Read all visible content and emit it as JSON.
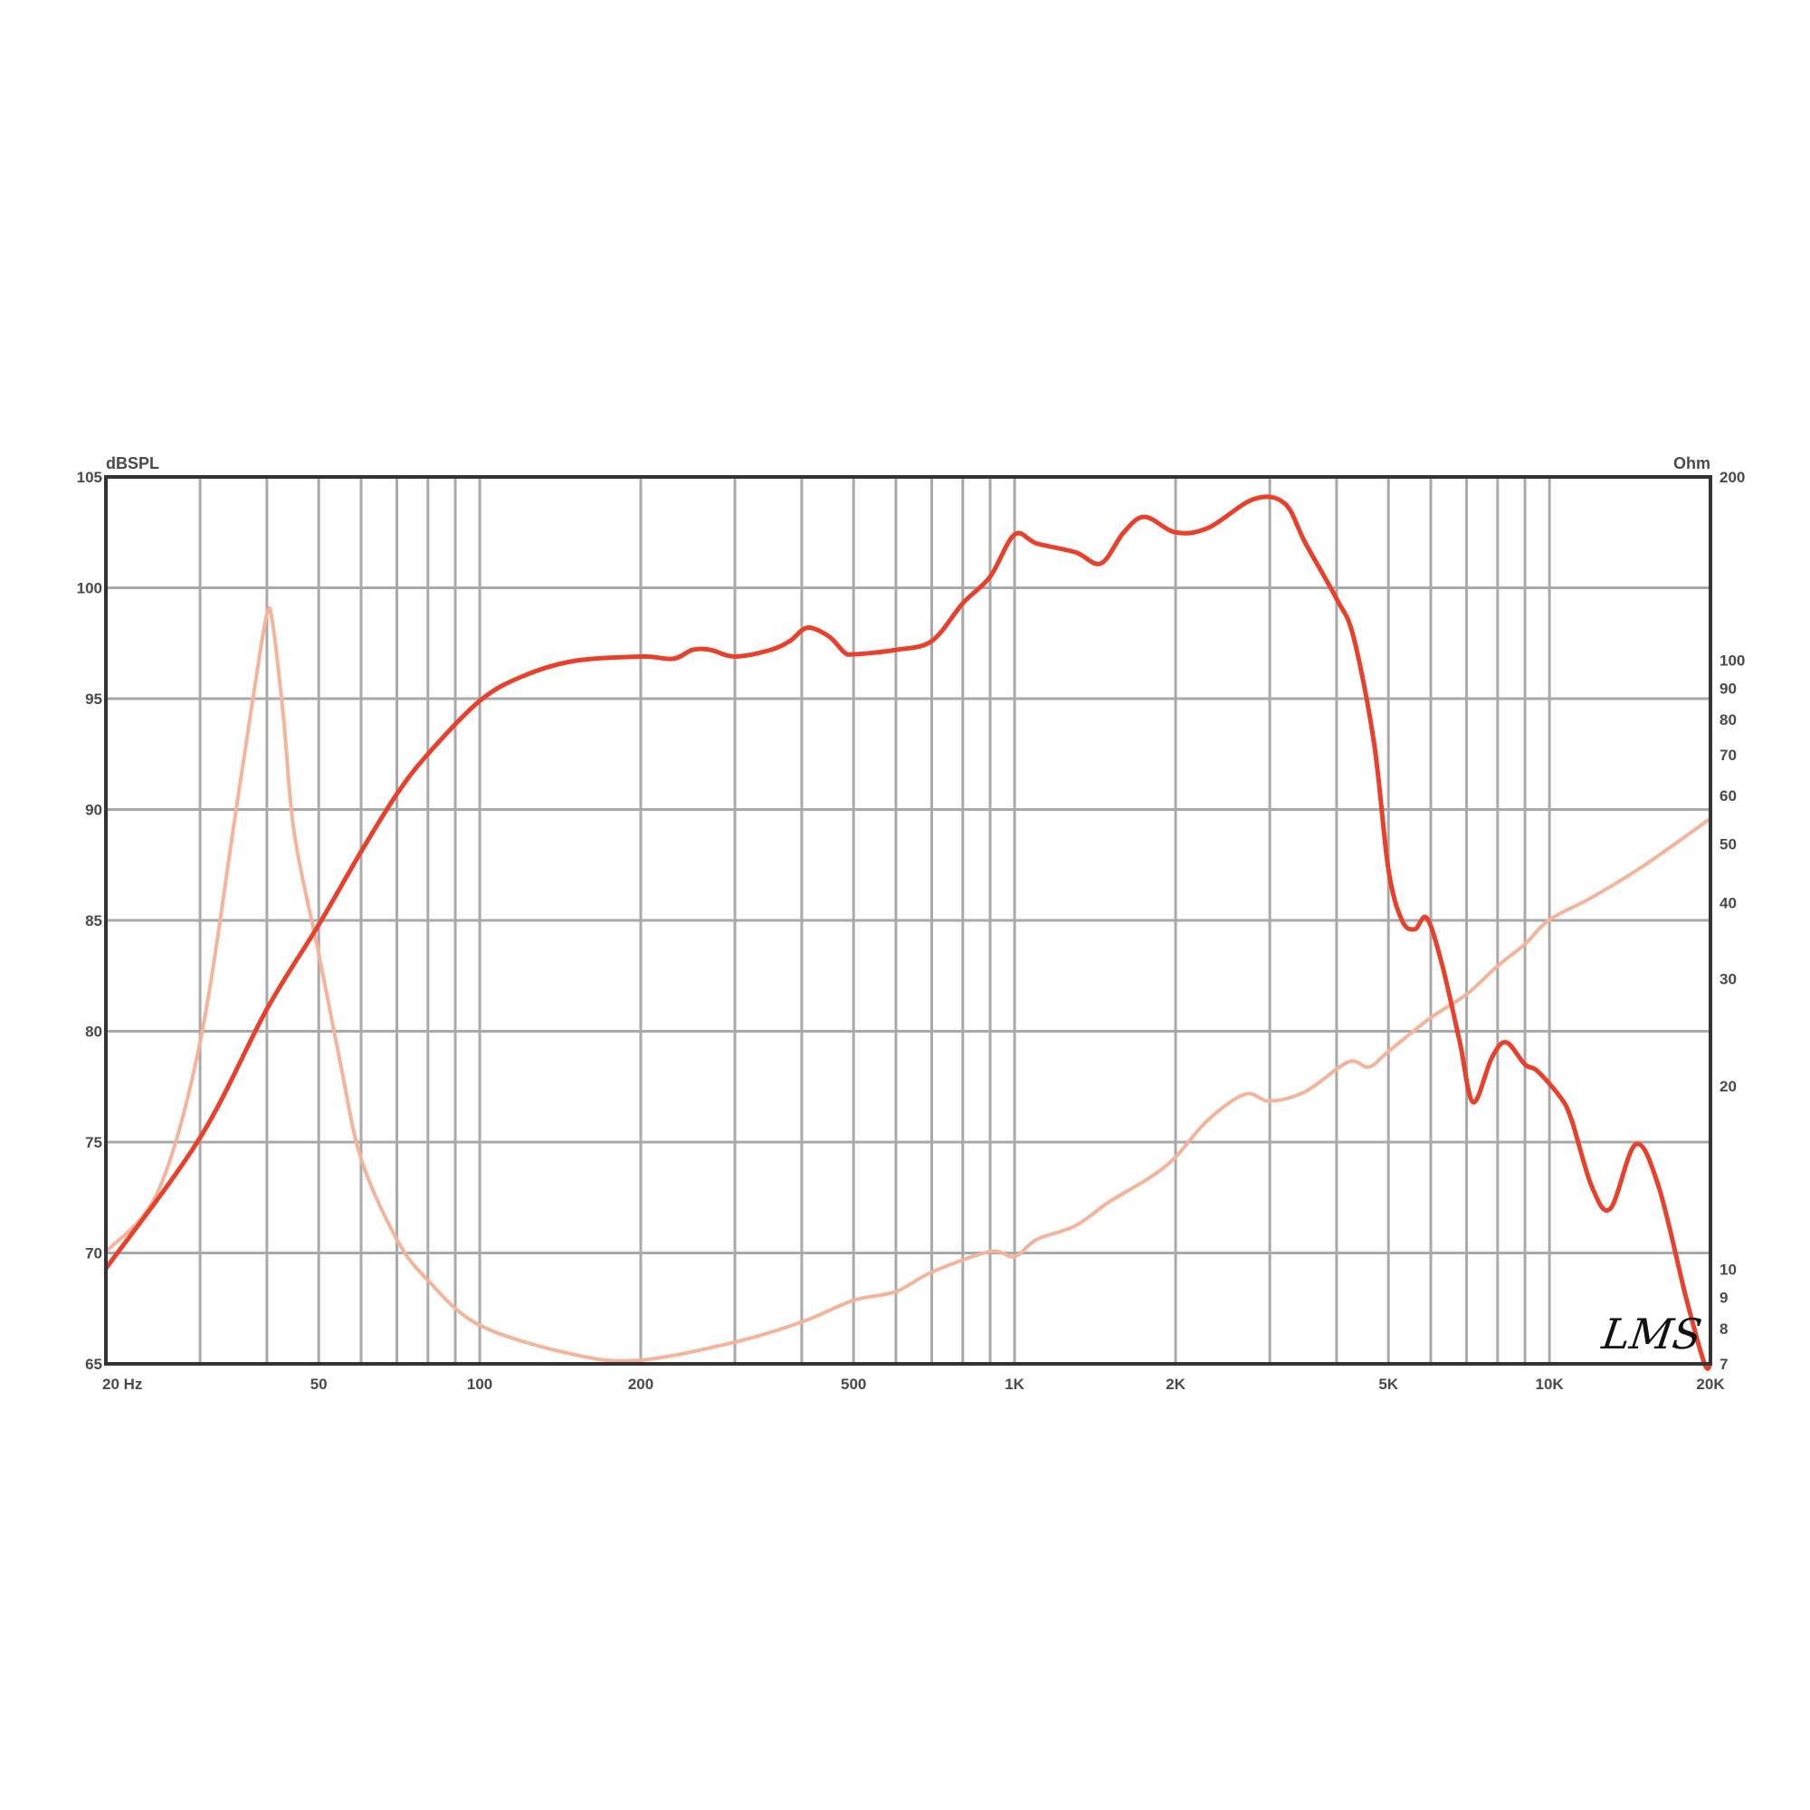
{
  "chart_data": {
    "type": "line",
    "title": "",
    "xlabel": "Hz",
    "ylabel_left": "dBSPL",
    "ylabel_right": "Ohm",
    "x_scale": "log",
    "xlim": [
      20,
      20000
    ],
    "ylim_left": [
      65,
      105
    ],
    "ylim_right": [
      7,
      200
    ],
    "y_right_scale": "log",
    "grid": true,
    "x_tick_labels": [
      {
        "value": 20,
        "label": "20  Hz"
      },
      {
        "value": 50,
        "label": "50"
      },
      {
        "value": 100,
        "label": "100"
      },
      {
        "value": 200,
        "label": "200"
      },
      {
        "value": 500,
        "label": "500"
      },
      {
        "value": 1000,
        "label": "1K"
      },
      {
        "value": 2000,
        "label": "2K"
      },
      {
        "value": 5000,
        "label": "5K"
      },
      {
        "value": 10000,
        "label": "10K"
      },
      {
        "value": 20000,
        "label": "20K"
      }
    ],
    "y_left_ticks": [
      65,
      70,
      75,
      80,
      85,
      90,
      95,
      100,
      105
    ],
    "y_right_ticks": [
      7,
      8,
      9,
      10,
      20,
      30,
      40,
      50,
      60,
      70,
      80,
      90,
      100,
      200
    ],
    "series": [
      {
        "axis": "left",
        "color": "#e8402a",
        "points": [
          [
            20,
            69.3
          ],
          [
            30,
            75.2
          ],
          [
            40,
            81
          ],
          [
            50,
            84.8
          ],
          [
            60,
            88.1
          ],
          [
            70,
            90.7
          ],
          [
            80,
            92.5
          ],
          [
            100,
            94.9
          ],
          [
            120,
            96
          ],
          [
            150,
            96.7
          ],
          [
            200,
            96.9
          ],
          [
            230,
            96.8
          ],
          [
            250,
            97.2
          ],
          [
            270,
            97.2
          ],
          [
            300,
            96.9
          ],
          [
            350,
            97.2
          ],
          [
            380,
            97.6
          ],
          [
            410,
            98.2
          ],
          [
            450,
            97.8
          ],
          [
            480,
            97.1
          ],
          [
            500,
            97.0
          ],
          [
            600,
            97.2
          ],
          [
            700,
            97.6
          ],
          [
            800,
            99.3
          ],
          [
            900,
            100.5
          ],
          [
            1000,
            102.4
          ],
          [
            1100,
            102.0
          ],
          [
            1300,
            101.6
          ],
          [
            1450,
            101.1
          ],
          [
            1600,
            102.5
          ],
          [
            1750,
            103.2
          ],
          [
            2000,
            102.5
          ],
          [
            2300,
            102.7
          ],
          [
            2800,
            104.0
          ],
          [
            3200,
            103.8
          ],
          [
            3500,
            102
          ],
          [
            4000,
            99.5
          ],
          [
            4300,
            97.8
          ],
          [
            4700,
            93
          ],
          [
            5000,
            87.3
          ],
          [
            5300,
            85
          ],
          [
            5600,
            84.6
          ],
          [
            5900,
            85.1
          ],
          [
            6300,
            83
          ],
          [
            6800,
            79.5
          ],
          [
            7200,
            76.8
          ],
          [
            7800,
            78.8
          ],
          [
            8300,
            79.5
          ],
          [
            9000,
            78.5
          ],
          [
            9500,
            78.2
          ],
          [
            10500,
            77
          ],
          [
            11000,
            76
          ],
          [
            12000,
            73
          ],
          [
            13000,
            72
          ],
          [
            14500,
            74.9
          ],
          [
            16000,
            73
          ],
          [
            18000,
            68
          ],
          [
            19500,
            65
          ],
          [
            20000,
            65
          ]
        ]
      },
      {
        "axis": "right",
        "color": "#f5b49a",
        "points": [
          [
            20,
            10.7
          ],
          [
            25,
            13.4
          ],
          [
            30,
            23.6
          ],
          [
            35,
            56.5
          ],
          [
            38,
            91
          ],
          [
            40,
            119
          ],
          [
            41,
            115
          ],
          [
            43,
            80
          ],
          [
            45,
            52
          ],
          [
            50,
            33
          ],
          [
            55,
            21.6
          ],
          [
            60,
            15.2
          ],
          [
            70,
            11.2
          ],
          [
            80,
            9.6
          ],
          [
            100,
            8.1
          ],
          [
            150,
            7.25
          ],
          [
            200,
            7.1
          ],
          [
            300,
            7.6
          ],
          [
            400,
            8.2
          ],
          [
            500,
            8.9
          ],
          [
            600,
            9.2
          ],
          [
            700,
            9.9
          ],
          [
            900,
            10.7
          ],
          [
            1000,
            10.5
          ],
          [
            1100,
            11.2
          ],
          [
            1300,
            11.8
          ],
          [
            1500,
            12.9
          ],
          [
            1800,
            14.2
          ],
          [
            2000,
            15.3
          ],
          [
            2300,
            17.6
          ],
          [
            2700,
            19.4
          ],
          [
            3000,
            18.9
          ],
          [
            3500,
            19.6
          ],
          [
            4200,
            21.9
          ],
          [
            4600,
            21.5
          ],
          [
            5000,
            22.8
          ],
          [
            6000,
            25.9
          ],
          [
            7000,
            28.3
          ],
          [
            8000,
            31.5
          ],
          [
            9000,
            34.2
          ],
          [
            10000,
            37.5
          ],
          [
            12000,
            40.8
          ],
          [
            15000,
            46
          ],
          [
            20000,
            55
          ]
        ]
      }
    ],
    "logo": "LMS"
  }
}
